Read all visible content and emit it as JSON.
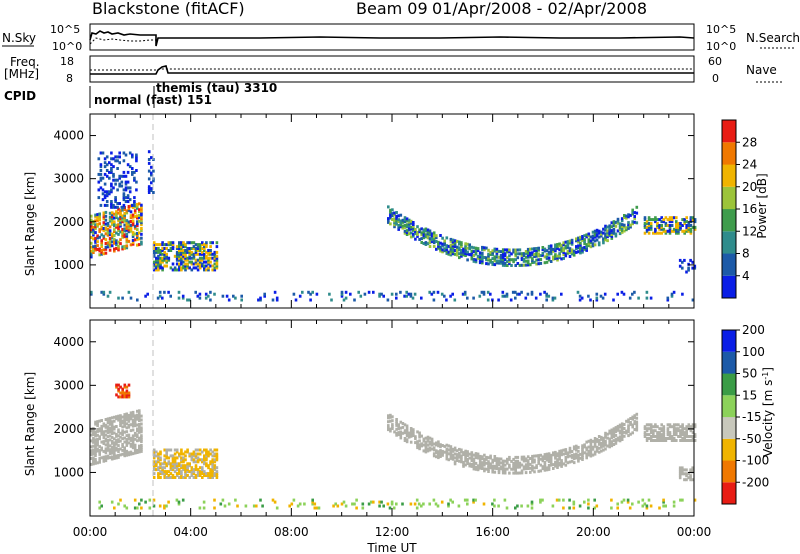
{
  "header": {
    "title": "Blackstone (fitACF)",
    "beam": "Beam 09",
    "date_range": "01/Apr/2008 - 02/Apr/2008"
  },
  "panels": {
    "nsky": {
      "label": "N.Sky",
      "right_label": "N.Search",
      "left_ticks": [
        "10^5",
        "10^0"
      ],
      "right_ticks": [
        "10^5",
        "10^0"
      ]
    },
    "freq": {
      "label_lines": [
        "Freq.",
        "[MHz]"
      ],
      "left_ticks": [
        "18",
        "8"
      ],
      "right_ticks": [
        "60",
        "0"
      ],
      "right_label": "Nave"
    },
    "cpid": {
      "label": "CPID",
      "modes": [
        {
          "text": "normal (fast) 151"
        },
        {
          "text": "themis (tau) 3310"
        }
      ]
    }
  },
  "colors": {
    "power_scale": [
      "#0a1ee6",
      "#1c5aa8",
      "#2f8c8c",
      "#3f9c4c",
      "#9cc43a",
      "#f0b400",
      "#f07800",
      "#e81c14"
    ],
    "velocity_scale": [
      "#e81c14",
      "#f07800",
      "#f0b400",
      "#c8c8bc",
      "#8cd25a",
      "#3a9c46",
      "#1c5aa8",
      "#0a1ee6"
    ],
    "ground_scatter": "#b0b0a8"
  },
  "chart_data": [
    {
      "type": "heatmap",
      "parameter": "power",
      "ylabel": "Slant Range [km]",
      "yticks": [
        1000,
        2000,
        3000,
        4000
      ],
      "ylim": [
        0,
        4500
      ],
      "colorbar_label": "Power [dB]",
      "colorbar_ticks": [
        "4",
        "8",
        "12",
        "16",
        "20",
        "24",
        "28"
      ],
      "colorbar_range": [
        0,
        32
      ],
      "regions": [
        {
          "t0": 0.0,
          "t1": 2.0,
          "r0": 1150,
          "r1": 2100,
          "slope": 300,
          "level": "high"
        },
        {
          "t0": 0.3,
          "t1": 1.8,
          "r0": 2300,
          "r1": 3600,
          "slope": 0,
          "level": "low"
        },
        {
          "t0": 2.3,
          "t1": 2.5,
          "r0": 2600,
          "r1": 3600,
          "slope": 0,
          "level": "low"
        },
        {
          "t0": 2.5,
          "t1": 5.0,
          "r0": 850,
          "r1": 1500,
          "slope": 0,
          "level": "mid"
        },
        {
          "t0": 11.8,
          "t1": 21.7,
          "r0": 1050,
          "r1": 2300,
          "slope": 0,
          "level": "arc"
        },
        {
          "t0": 22.0,
          "t1": 24.0,
          "r0": 1700,
          "r1": 2100,
          "slope": 0,
          "level": "mid"
        },
        {
          "t0": 23.4,
          "t1": 24.0,
          "r0": 800,
          "r1": 1100,
          "slope": 0,
          "level": "low"
        },
        {
          "t0": 0.0,
          "t1": 24.0,
          "r0": 150,
          "r1": 350,
          "slope": 0,
          "level": "floor"
        }
      ]
    },
    {
      "type": "heatmap",
      "parameter": "velocity",
      "ylabel": "Slant Range [km]",
      "yticks": [
        1000,
        2000,
        3000,
        4000
      ],
      "ylim": [
        0,
        4500
      ],
      "xlabel": "Time UT",
      "xticks": [
        "00:00",
        "04:00",
        "08:00",
        "12:00",
        "16:00",
        "20:00",
        "00:00"
      ],
      "xlim": [
        0,
        24
      ],
      "colorbar_label": "Velocity [m s",
      "colorbar_label_superscript": "-1",
      "colorbar_label_end": "]",
      "colorbar_ticks": [
        "-200",
        "-100",
        "-50",
        "-15",
        "15",
        "50",
        "100",
        "200"
      ],
      "regions": [
        {
          "t0": 0.0,
          "t1": 2.0,
          "r0": 1150,
          "r1": 2100,
          "slope": 300,
          "level": "ground"
        },
        {
          "t0": 1.0,
          "t1": 1.5,
          "r0": 2700,
          "r1": 3000,
          "slope": 0,
          "level": "neg-strong"
        },
        {
          "t0": 2.5,
          "t1": 5.0,
          "r0": 850,
          "r1": 1500,
          "slope": 0,
          "level": "neg"
        },
        {
          "t0": 11.8,
          "t1": 21.7,
          "r0": 1050,
          "r1": 2300,
          "slope": 0,
          "level": "ground"
        },
        {
          "t0": 22.0,
          "t1": 24.0,
          "r0": 1700,
          "r1": 2100,
          "slope": 0,
          "level": "ground"
        },
        {
          "t0": 23.4,
          "t1": 24.0,
          "r0": 800,
          "r1": 1100,
          "slope": 0,
          "level": "ground"
        },
        {
          "t0": 0.0,
          "t1": 24.0,
          "r0": 150,
          "r1": 350,
          "slope": 0,
          "level": "floor"
        }
      ]
    }
  ]
}
